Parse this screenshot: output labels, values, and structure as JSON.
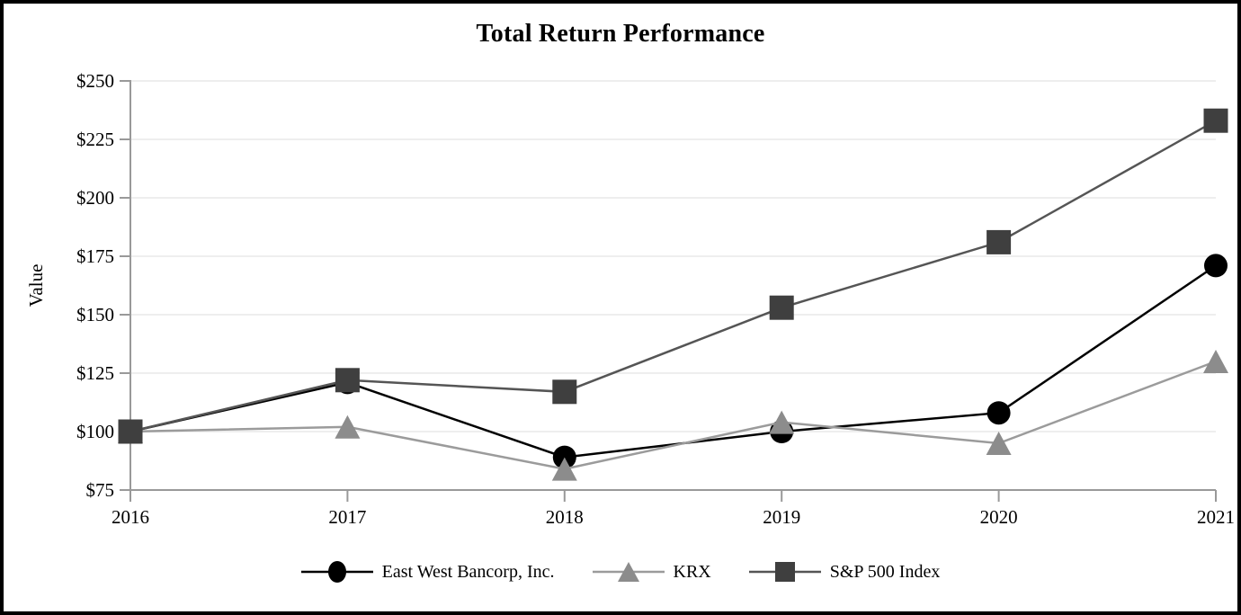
{
  "title": "Total Return Performance",
  "chart_data": {
    "type": "line",
    "title": "Total Return Performance",
    "xlabel": "",
    "ylabel": "Value",
    "x_labels": [
      "2016",
      "2017",
      "2018",
      "2019",
      "2020",
      "2021"
    ],
    "ylim": [
      75,
      250
    ],
    "y_tick_values": [
      250,
      225,
      200,
      175,
      150,
      125,
      100,
      75
    ],
    "y_tick_labels": [
      "$250",
      "$225",
      "$200",
      "$175",
      "$150",
      "$125",
      "$100",
      "$75"
    ],
    "grid": true,
    "legend_position": "bottom-center",
    "series": [
      {
        "name": "East West Bancorp, Inc.",
        "marker": "circle",
        "color": "#000000",
        "values": [
          100,
          121,
          89,
          100,
          108,
          171
        ]
      },
      {
        "name": "KRX",
        "marker": "triangle",
        "color": "#8C8C8C",
        "line_color": "#9B9B9B",
        "values": [
          100,
          102,
          84,
          104,
          95,
          130
        ]
      },
      {
        "name": "S&P 500 Index",
        "marker": "square",
        "color": "#3F3F3F",
        "line_color": "#555555",
        "values": [
          100,
          122,
          117,
          153,
          181,
          233
        ]
      }
    ],
    "colors": {
      "axis": "#999999",
      "gridline": "#E8E8E8",
      "background": "#FFFFFF",
      "frame_border": "#000000"
    }
  }
}
